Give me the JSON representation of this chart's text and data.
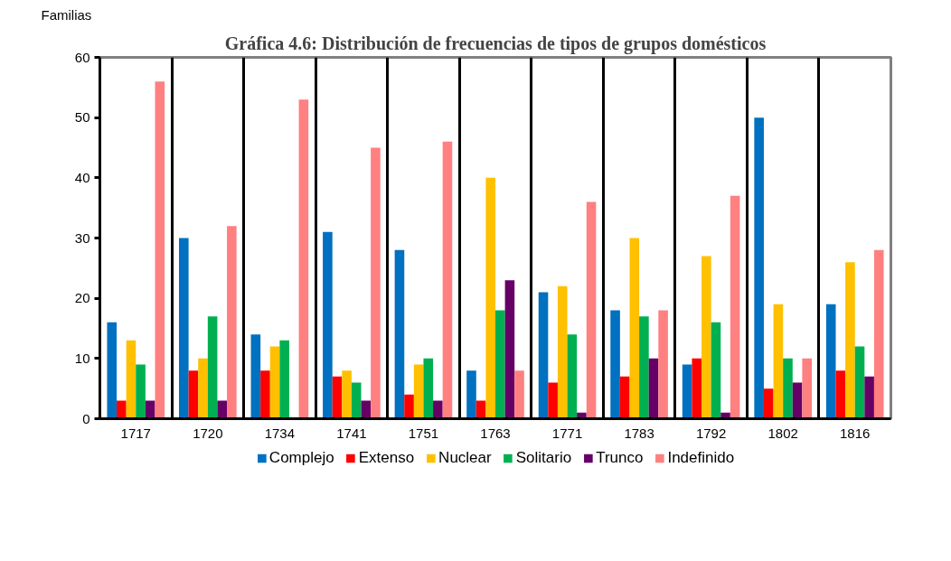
{
  "chart_data": {
    "type": "bar",
    "title": "Gráfica 4.6: Distribución de frecuencias de tipos de grupos domésticos",
    "ylabel": "Familias",
    "categories": [
      "1717",
      "1720",
      "1734",
      "1741",
      "1751",
      "1763",
      "1771",
      "1783",
      "1792",
      "1802",
      "1816"
    ],
    "series": [
      {
        "name": "Complejo",
        "color": "#0070c0",
        "values": [
          16,
          30,
          14,
          31,
          28,
          8,
          21,
          18,
          9,
          50,
          19
        ]
      },
      {
        "name": "Extenso",
        "color": "#ff0000",
        "values": [
          3,
          8,
          8,
          7,
          4,
          3,
          6,
          7,
          10,
          5,
          8
        ]
      },
      {
        "name": "Nuclear",
        "color": "#ffc000",
        "values": [
          13,
          10,
          12,
          8,
          9,
          40,
          22,
          30,
          27,
          19,
          26
        ]
      },
      {
        "name": "Solitario",
        "color": "#00b050",
        "values": [
          9,
          17,
          13,
          6,
          10,
          18,
          14,
          17,
          16,
          10,
          12
        ]
      },
      {
        "name": "Trunco",
        "color": "#660066",
        "values": [
          3,
          3,
          0,
          3,
          3,
          23,
          1,
          10,
          1,
          6,
          7
        ]
      },
      {
        "name": "Indefinido",
        "color": "#ff8080",
        "values": [
          56,
          32,
          53,
          45,
          46,
          8,
          36,
          18,
          37,
          10,
          28
        ]
      }
    ],
    "ylim": [
      0,
      60
    ],
    "yticks": [
      0,
      10,
      20,
      30,
      40,
      50,
      60
    ],
    "grid": "x",
    "legend": "bottom"
  }
}
